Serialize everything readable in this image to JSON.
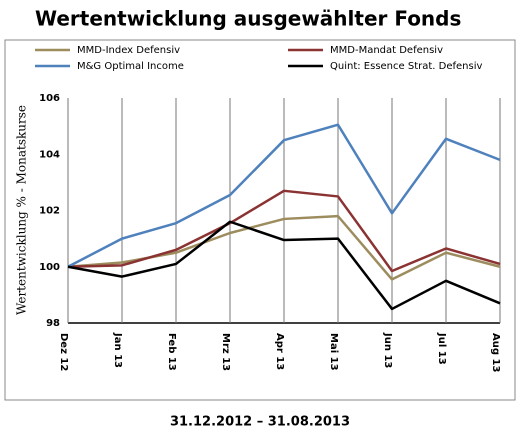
{
  "chart_data": {
    "type": "line",
    "title": "Wertentwicklung ausgewählter Fonds",
    "subtitle": "31.12.2012 – 31.08.2013",
    "y_label": "Wertentwicklung % - Monatskurse",
    "categories": [
      "Dez 12",
      "Jan 13",
      "Feb 13",
      "Mrz 13",
      "Apr 13",
      "Mai 13",
      "Jun 13",
      "Jul 13",
      "Aug 13"
    ],
    "series": [
      {
        "name": "MMD-Index Defensiv",
        "color": "#9c8c5e",
        "values": [
          100,
          100.15,
          100.5,
          101.2,
          101.7,
          101.8,
          99.55,
          100.5,
          100.0
        ]
      },
      {
        "name": "MMD-Mandat Defensiv",
        "color": "#8b3232",
        "values": [
          100,
          100.05,
          100.6,
          101.55,
          102.7,
          102.5,
          99.85,
          100.65,
          100.1
        ]
      },
      {
        "name": "M&G Optimal Income",
        "color": "#4f81bd",
        "values": [
          100,
          101.0,
          101.55,
          102.55,
          104.5,
          105.05,
          101.9,
          104.55,
          103.8
        ]
      },
      {
        "name": "Quint: Essence Strat. Defensiv",
        "color": "#000000",
        "values": [
          100,
          99.65,
          100.1,
          101.6,
          100.95,
          101.0,
          98.5,
          99.5,
          98.7
        ]
      }
    ],
    "ylim": [
      98,
      106
    ],
    "yticks": [
      98,
      100,
      102,
      104,
      106
    ],
    "grid": true
  }
}
